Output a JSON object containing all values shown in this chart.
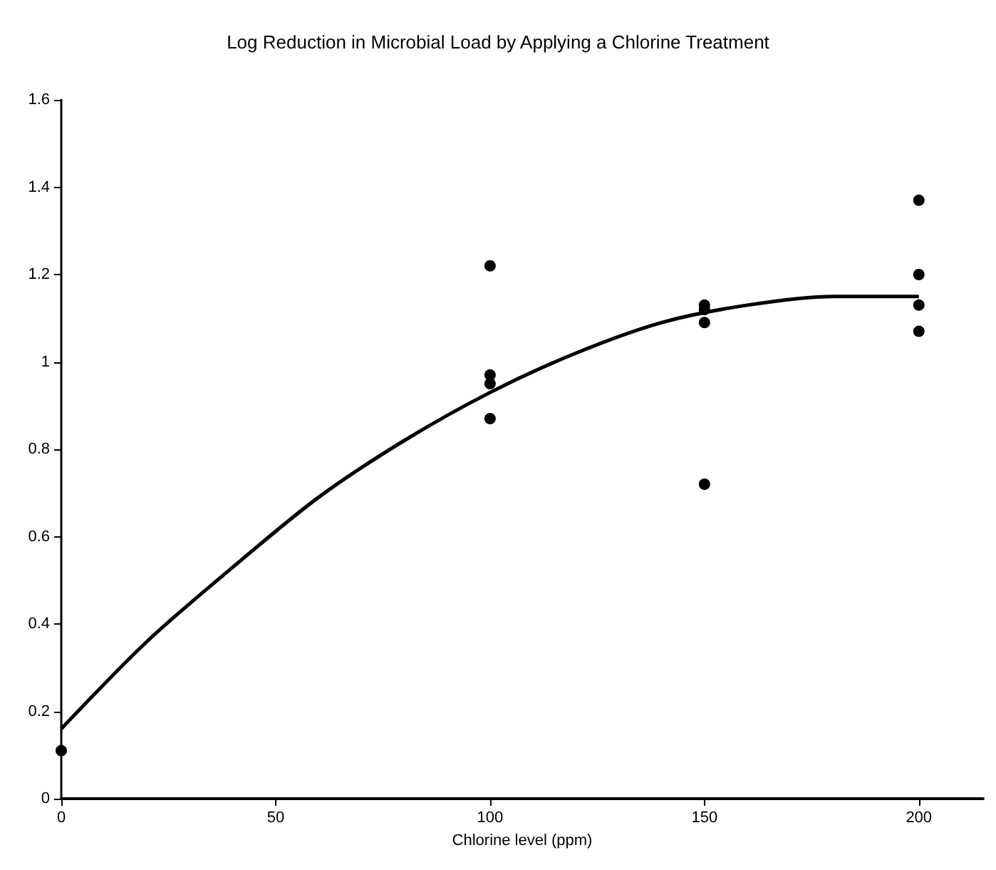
{
  "chart_data": {
    "type": "scatter",
    "title": "Log Reduction in Microbial Load by Applying a Chlorine Treatment",
    "xlabel": "Chlorine level (ppm)",
    "series": [
      {
        "color": "#000000",
        "marker": "circle",
        "x": [
          0,
          100,
          100,
          100,
          100,
          150,
          150,
          150,
          150,
          200,
          200,
          200,
          200
        ],
        "values": [
          0.11,
          1.22,
          0.97,
          0.95,
          0.87,
          1.13,
          1.12,
          1.09,
          0.72,
          1.37,
          1.2,
          1.13,
          1.07
        ]
      },
      {
        "type": "line",
        "color": "#000000",
        "marker": "none",
        "x": [
          0,
          20,
          40,
          60,
          80,
          100,
          120,
          140,
          160,
          180,
          200
        ],
        "values": [
          0.16,
          0.36,
          0.53,
          0.69,
          0.82,
          0.93,
          1.02,
          1.09,
          1.13,
          1.15,
          1.15
        ]
      }
    ],
    "xlim": [
      0,
      215
    ],
    "xticks": [
      0,
      50,
      100,
      150,
      200
    ],
    "ylim": [
      0,
      1.6
    ],
    "yticks": [
      0,
      0.2,
      0.4,
      0.6,
      0.8,
      1,
      1.2,
      1.4,
      1.6
    ],
    "grid": false
  }
}
